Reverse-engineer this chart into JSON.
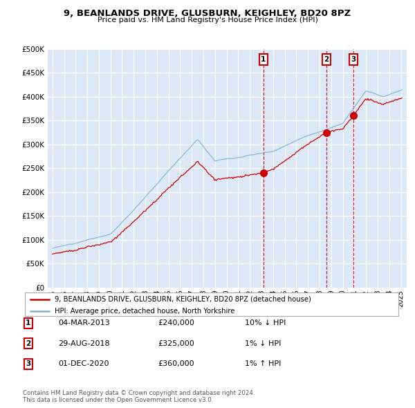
{
  "title": "9, BEANLANDS DRIVE, GLUSBURN, KEIGHLEY, BD20 8PZ",
  "subtitle": "Price paid vs. HM Land Registry's House Price Index (HPI)",
  "ylim": [
    0,
    500000
  ],
  "yticks": [
    0,
    50000,
    100000,
    150000,
    200000,
    250000,
    300000,
    350000,
    400000,
    450000,
    500000
  ],
  "background_color": "#ffffff",
  "plot_bg_color": "#dce8f5",
  "grid_color": "#ffffff",
  "sales": [
    {
      "date_num": 2013.17,
      "price": 240000,
      "label": "1"
    },
    {
      "date_num": 2018.58,
      "price": 325000,
      "label": "2"
    },
    {
      "date_num": 2020.92,
      "price": 360000,
      "label": "3"
    }
  ],
  "sale_line_color": "#cc0000",
  "hpi_line_color": "#7fb3d3",
  "legend_items": [
    "9, BEANLANDS DRIVE, GLUSBURN, KEIGHLEY, BD20 8PZ (detached house)",
    "HPI: Average price, detached house, North Yorkshire"
  ],
  "table_rows": [
    {
      "num": "1",
      "date": "04-MAR-2013",
      "price": "£240,000",
      "hpi": "10% ↓ HPI"
    },
    {
      "num": "2",
      "date": "29-AUG-2018",
      "price": "£325,000",
      "hpi": "1% ↓ HPI"
    },
    {
      "num": "3",
      "date": "01-DEC-2020",
      "price": "£360,000",
      "hpi": "1% ↑ HPI"
    }
  ],
  "footnote": "Contains HM Land Registry data © Crown copyright and database right 2024.\nThis data is licensed under the Open Government Licence v3.0."
}
